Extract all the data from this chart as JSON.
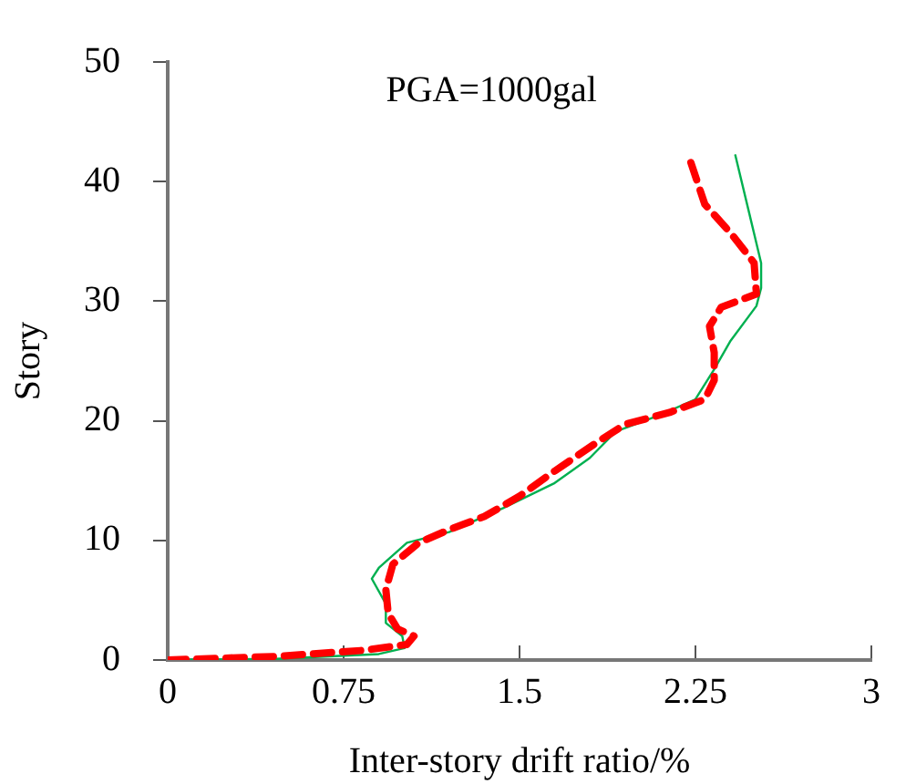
{
  "chart_data": {
    "type": "line",
    "xlabel": "Inter-story drift ratio/%",
    "ylabel": "Story",
    "annotations": [
      "PGA=1000gal"
    ],
    "xlim": [
      0,
      3
    ],
    "xticks": [
      0,
      0.75,
      1.5,
      2.25,
      3
    ],
    "ylim": [
      0,
      50
    ],
    "yticks": [
      0,
      10,
      20,
      30,
      40,
      50
    ],
    "grid": false,
    "legend": false,
    "marker": "none",
    "series": [
      {
        "color": "#ff0000",
        "line_style": "dashed",
        "x": [
          0,
          0.46,
          0.83,
          1.02,
          1.05,
          0.98,
          0.94,
          0.93,
          0.96,
          1.07,
          1.2,
          1.35,
          1.5,
          1.65,
          1.83,
          1.95,
          2.14,
          2.29,
          2.33,
          2.33,
          2.31,
          2.36,
          2.51,
          2.5,
          2.4,
          2.29,
          2.22
        ],
        "values": [
          0,
          0.3,
          0.8,
          1.3,
          2,
          2.6,
          3.9,
          5.9,
          8,
          9.8,
          10.9,
          12,
          13.7,
          15.8,
          18.2,
          19.7,
          20.7,
          21.8,
          23.4,
          25.7,
          27.9,
          29.5,
          30.6,
          33.2,
          35.7,
          38.1,
          42.2
        ]
      },
      {
        "color": "#00b050",
        "line_style": "solid",
        "x": [
          0,
          0.46,
          0.9,
          1.01,
          1.0,
          0.93,
          0.93,
          0.87,
          0.9,
          1.02,
          1.2,
          1.43,
          1.65,
          1.8,
          1.91,
          2.1,
          2.25,
          2.33,
          2.4,
          2.51,
          2.53,
          2.53,
          2.48,
          2.42
        ],
        "values": [
          0,
          0.1,
          0.5,
          1,
          2,
          3.1,
          4.7,
          6.8,
          7.7,
          9.8,
          10.7,
          12.7,
          14.8,
          16.9,
          19.1,
          20.5,
          21.8,
          24.3,
          26.7,
          29.6,
          31.1,
          33.2,
          37.3,
          42.2
        ]
      }
    ]
  }
}
